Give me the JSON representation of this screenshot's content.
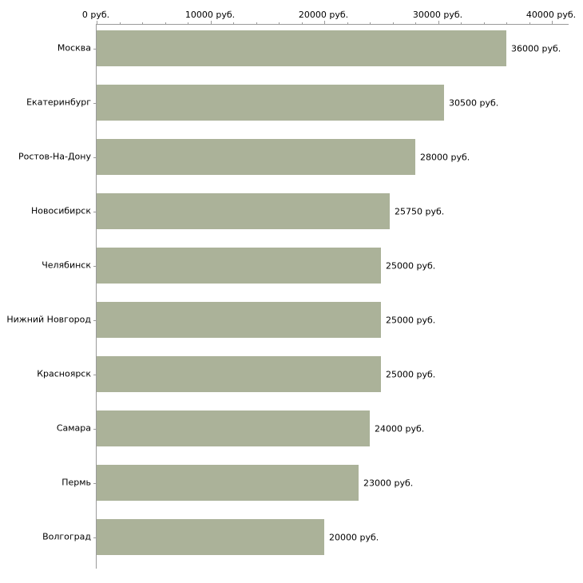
{
  "chart_data": {
    "type": "bar",
    "orientation": "horizontal",
    "title": "",
    "categories": [
      "Москва",
      "Екатеринбург",
      "Ростов-На-Дону",
      "Новосибирск",
      "Челябинск",
      "Нижний Новгород",
      "Красноярск",
      "Самара",
      "Пермь",
      "Волгоград"
    ],
    "values": [
      36000,
      30500,
      28000,
      25750,
      25000,
      25000,
      25000,
      24000,
      23000,
      20000
    ],
    "value_labels": [
      "36000 руб.",
      "30500 руб.",
      "28000 руб.",
      "25750 руб.",
      "25000 руб.",
      "25000 руб.",
      "25000 руб.",
      "24000 руб.",
      "23000 руб.",
      "20000 руб."
    ],
    "xlim": [
      0,
      40000
    ],
    "x_ticks": [
      0,
      10000,
      20000,
      30000,
      40000
    ],
    "x_tick_labels": [
      "0 руб.",
      "10000 руб.",
      "20000 руб.",
      "30000 руб.",
      "40000 руб."
    ],
    "minor_tick_step": 2000,
    "grid": false,
    "legend": null,
    "bar_color": "#abb299",
    "axis_color": "#9a9a9a",
    "text_color": "#000000"
  }
}
